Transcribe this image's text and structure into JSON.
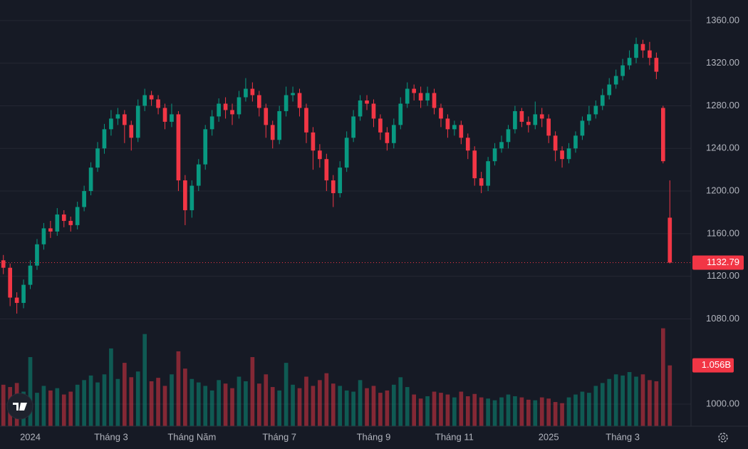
{
  "chart_data": {
    "type": "candlestick",
    "categories": [
      null,
      null,
      null,
      null,
      "2024",
      null,
      null,
      null,
      null,
      null,
      null,
      null,
      null,
      null,
      null,
      null,
      "Tháng 3",
      null,
      null,
      null,
      null,
      null,
      null,
      null,
      null,
      null,
      null,
      null,
      "Tháng Năm",
      null,
      null,
      null,
      null,
      null,
      null,
      null,
      null,
      null,
      null,
      null,
      null,
      "Tháng 7",
      null,
      null,
      null,
      null,
      null,
      null,
      null,
      null,
      null,
      null,
      null,
      null,
      null,
      "Tháng 9",
      null,
      null,
      null,
      null,
      null,
      null,
      null,
      null,
      null,
      null,
      null,
      "Tháng 11",
      null,
      null,
      null,
      null,
      null,
      null,
      null,
      null,
      null,
      null,
      null,
      null,
      null,
      "2025",
      null,
      null,
      null,
      null,
      null,
      null,
      null,
      null,
      null,
      null,
      "Tháng 3",
      null,
      null,
      null,
      null,
      null,
      null,
      null
    ],
    "open": [
      1135,
      1128,
      1100,
      1095,
      1112,
      1130,
      1150,
      1165,
      1162,
      1178,
      1172,
      1168,
      1185,
      1200,
      1222,
      1240,
      1258,
      1268,
      1272,
      1262,
      1250,
      1280,
      1290,
      1286,
      1278,
      1265,
      1272,
      1210,
      1182,
      1205,
      1225,
      1258,
      1270,
      1282,
      1276,
      1272,
      1288,
      1296,
      1290,
      1278,
      1262,
      1248,
      1275,
      1290,
      1292,
      1278,
      1255,
      1238,
      1230,
      1210,
      1198,
      1222,
      1250,
      1270,
      1285,
      1282,
      1268,
      1255,
      1245,
      1262,
      1282,
      1296,
      1292,
      1285,
      1292,
      1278,
      1268,
      1258,
      1262,
      1250,
      1238,
      1212,
      1205,
      1228,
      1240,
      1246,
      1258,
      1275,
      1265,
      1262,
      1272,
      1268,
      1252,
      1238,
      1230,
      1240,
      1252,
      1266,
      1272,
      1280,
      1290,
      1300,
      1308,
      1318,
      1325,
      1338,
      1332,
      1325,
      1278,
      1175
    ],
    "high": [
      1140,
      1132,
      1105,
      1117,
      1135,
      1155,
      1170,
      1172,
      1184,
      1182,
      1176,
      1190,
      1205,
      1227,
      1246,
      1263,
      1276,
      1278,
      1276,
      1266,
      1286,
      1296,
      1294,
      1290,
      1282,
      1282,
      1275,
      1215,
      1210,
      1230,
      1262,
      1276,
      1287,
      1288,
      1282,
      1294,
      1306,
      1302,
      1294,
      1282,
      1266,
      1280,
      1298,
      1298,
      1296,
      1282,
      1260,
      1244,
      1235,
      1215,
      1228,
      1256,
      1276,
      1290,
      1290,
      1286,
      1272,
      1260,
      1268,
      1288,
      1302,
      1300,
      1298,
      1298,
      1296,
      1282,
      1272,
      1266,
      1266,
      1254,
      1242,
      1218,
      1232,
      1245,
      1252,
      1262,
      1280,
      1278,
      1270,
      1284,
      1278,
      1272,
      1256,
      1242,
      1245,
      1256,
      1270,
      1280,
      1285,
      1296,
      1306,
      1314,
      1324,
      1332,
      1344,
      1342,
      1340,
      1330,
      1280,
      1210
    ],
    "low": [
      1122,
      1092,
      1085,
      1090,
      1108,
      1126,
      1145,
      1156,
      1158,
      1166,
      1162,
      1164,
      1181,
      1196,
      1218,
      1235,
      1252,
      1262,
      1245,
      1238,
      1246,
      1275,
      1280,
      1272,
      1258,
      1260,
      1200,
      1168,
      1175,
      1200,
      1220,
      1252,
      1265,
      1268,
      1262,
      1268,
      1284,
      1284,
      1270,
      1250,
      1240,
      1244,
      1270,
      1284,
      1270,
      1245,
      1220,
      1222,
      1200,
      1185,
      1194,
      1218,
      1246,
      1266,
      1276,
      1260,
      1248,
      1238,
      1240,
      1258,
      1278,
      1285,
      1278,
      1280,
      1272,
      1260,
      1250,
      1252,
      1244,
      1230,
      1205,
      1198,
      1200,
      1224,
      1236,
      1240,
      1254,
      1260,
      1255,
      1258,
      1260,
      1245,
      1228,
      1222,
      1226,
      1236,
      1248,
      1262,
      1268,
      1276,
      1286,
      1296,
      1304,
      1314,
      1320,
      1325,
      1318,
      1305,
      1226,
      1132
    ],
    "close": [
      1128,
      1100,
      1095,
      1112,
      1130,
      1150,
      1165,
      1162,
      1178,
      1172,
      1168,
      1185,
      1200,
      1222,
      1240,
      1258,
      1268,
      1272,
      1262,
      1250,
      1280,
      1290,
      1286,
      1278,
      1265,
      1272,
      1210,
      1182,
      1205,
      1225,
      1258,
      1270,
      1282,
      1276,
      1272,
      1288,
      1296,
      1290,
      1278,
      1262,
      1248,
      1275,
      1290,
      1292,
      1278,
      1255,
      1238,
      1230,
      1210,
      1198,
      1222,
      1250,
      1270,
      1285,
      1282,
      1268,
      1255,
      1245,
      1262,
      1282,
      1296,
      1292,
      1285,
      1292,
      1278,
      1268,
      1258,
      1262,
      1250,
      1238,
      1212,
      1205,
      1228,
      1240,
      1246,
      1258,
      1275,
      1265,
      1262,
      1272,
      1268,
      1252,
      1238,
      1230,
      1240,
      1252,
      1266,
      1272,
      1280,
      1290,
      1300,
      1308,
      1318,
      1325,
      1338,
      1332,
      1325,
      1312,
      1228,
      1132.79
    ],
    "up_color": "#089981",
    "down_color": "#f23645",
    "ylim": [
      979.3,
      1379.3
    ],
    "yticks": [
      {
        "value": 1000,
        "label": "1000.00"
      },
      {
        "value": 1080,
        "label": "1080.00"
      },
      {
        "value": 1120,
        "label": "1120.00"
      },
      {
        "value": 1160,
        "label": "1160.00"
      },
      {
        "value": 1200,
        "label": "1200.00"
      },
      {
        "value": 1240,
        "label": "1240.00"
      },
      {
        "value": 1280,
        "label": "1280.00"
      },
      {
        "value": 1320,
        "label": "1320.00"
      },
      {
        "value": 1360,
        "label": "1360.00"
      }
    ],
    "grid": true,
    "volume": {
      "values": [
        0.72,
        0.68,
        0.75,
        0.6,
        1.2,
        0.58,
        0.7,
        0.62,
        0.66,
        0.55,
        0.6,
        0.72,
        0.8,
        0.88,
        0.76,
        0.9,
        1.35,
        0.82,
        1.1,
        0.85,
        0.95,
        1.6,
        0.78,
        0.84,
        0.7,
        0.9,
        1.3,
        1.0,
        0.82,
        0.76,
        0.7,
        0.62,
        0.8,
        0.74,
        0.66,
        0.86,
        0.78,
        1.2,
        0.74,
        0.9,
        0.68,
        0.62,
        1.1,
        0.72,
        0.66,
        0.86,
        0.7,
        0.8,
        0.92,
        0.74,
        0.7,
        0.62,
        0.6,
        0.8,
        0.66,
        0.7,
        0.58,
        0.62,
        0.72,
        0.85,
        0.68,
        0.55,
        0.48,
        0.52,
        0.6,
        0.58,
        0.55,
        0.5,
        0.6,
        0.52,
        0.56,
        0.5,
        0.48,
        0.45,
        0.5,
        0.55,
        0.52,
        0.5,
        0.46,
        0.45,
        0.5,
        0.48,
        0.42,
        0.4,
        0.5,
        0.55,
        0.6,
        0.58,
        0.7,
        0.75,
        0.82,
        0.9,
        0.88,
        0.94,
        0.86,
        0.9,
        0.8,
        0.78,
        1.7,
        1.056
      ],
      "last_label": "1.056B",
      "ylim": [
        0,
        7.4
      ]
    }
  }
}
